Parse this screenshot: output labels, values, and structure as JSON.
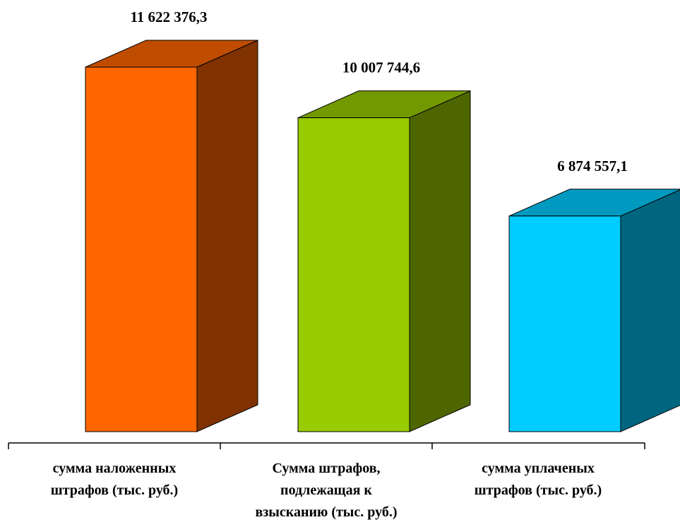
{
  "chart_data": {
    "type": "bar",
    "style": "3d-column",
    "categories": [
      [
        "сумма наложенных",
        "штрафов (тыс. руб.)"
      ],
      [
        "Сумма штрафов,",
        "подлежащая к",
        "взысканию (тыс. руб.)"
      ],
      [
        "сумма уплаченых",
        "штрафов (тыс. руб.)"
      ]
    ],
    "values": [
      11622376.3,
      10007744.6,
      6874557.1
    ],
    "value_labels": [
      "11 622 376,3",
      "10 007 744,6",
      "6 874 557,1"
    ],
    "colors": [
      {
        "front": "#FF6600",
        "top": "#C04C00",
        "side": "#803300"
      },
      {
        "front": "#99CC00",
        "top": "#739900",
        "side": "#4D6600"
      },
      {
        "front": "#00CCFF",
        "top": "#0099BF",
        "side": "#006680"
      }
    ],
    "title": "",
    "xlabel": "",
    "ylabel": "",
    "ylim": [
      0,
      12000000
    ],
    "grid": false,
    "legend": "none"
  }
}
